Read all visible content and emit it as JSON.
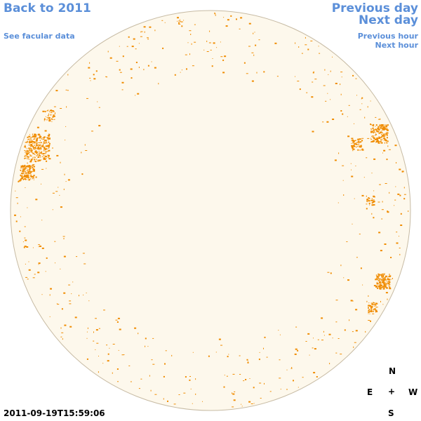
{
  "nav": {
    "back_label": "Back to 2011",
    "facular_label": "See facular data",
    "prev_day_label": "Previous day",
    "next_day_label": "Next day",
    "prev_hour_label": "Previous hour",
    "next_hour_label": "Next hour"
  },
  "compass": {
    "north": "N",
    "south": "S",
    "east": "E",
    "west": "W",
    "center": "+"
  },
  "timestamp": "2011-09-19T15:59:06",
  "colors": {
    "disk_fill": "#fdf8ec",
    "disk_edge": "#c7bba4",
    "faculae": "#f08c00",
    "link": "#5b8fd9"
  }
}
